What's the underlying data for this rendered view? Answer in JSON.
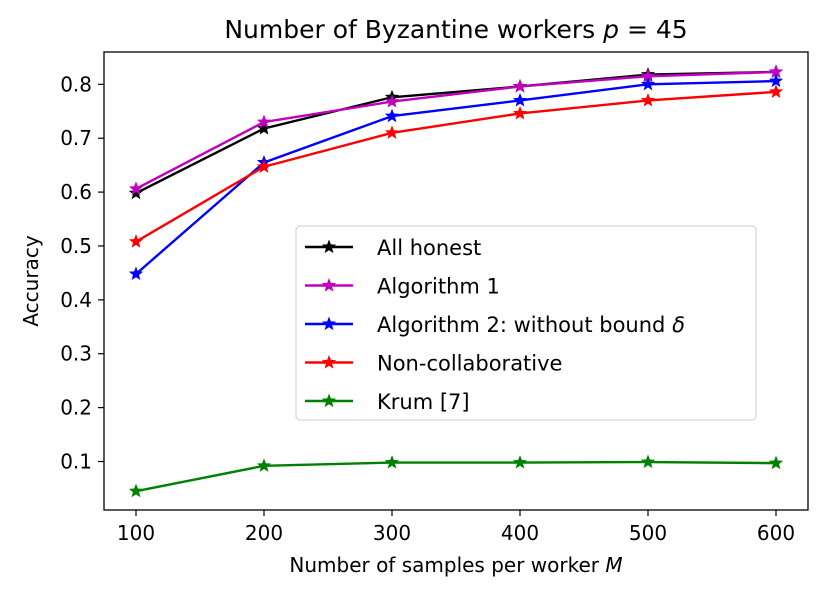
{
  "chart_data": {
    "type": "line",
    "title": "Number of Byzantine workers p = 45",
    "title_parts": {
      "text": "Number of Byzantine workers ",
      "var": "p",
      "rest": " = 45"
    },
    "xlabel": "Number of samples per worker M",
    "xlabel_parts": {
      "text": "Number of samples per worker ",
      "var": "M"
    },
    "ylabel": "Accuracy",
    "x": [
      100,
      200,
      300,
      400,
      500,
      600
    ],
    "xlim": [
      75,
      625
    ],
    "ylim": [
      0.01,
      0.86
    ],
    "xticks": [
      "100",
      "200",
      "300",
      "400",
      "500",
      "600"
    ],
    "yticks": [
      "0.1",
      "0.2",
      "0.3",
      "0.4",
      "0.5",
      "0.6",
      "0.7",
      "0.8"
    ],
    "grid": false,
    "legend_position": "center-right",
    "series": [
      {
        "name": "All honest",
        "color": "#000000",
        "values": [
          0.598,
          0.718,
          0.776,
          0.796,
          0.818,
          0.823
        ]
      },
      {
        "name": "Algorithm 1",
        "color": "#bf00bf",
        "values": [
          0.606,
          0.73,
          0.768,
          0.796,
          0.815,
          0.823
        ]
      },
      {
        "name": "Algorithm 2: without bound δ",
        "color": "#0000ff",
        "values": [
          0.448,
          0.655,
          0.741,
          0.77,
          0.8,
          0.806
        ]
      },
      {
        "name": "Non-collaborative",
        "color": "#ff0000",
        "values": [
          0.508,
          0.647,
          0.71,
          0.746,
          0.77,
          0.786
        ]
      },
      {
        "name": "Krum [7]",
        "color": "#008000",
        "values": [
          0.045,
          0.092,
          0.098,
          0.098,
          0.099,
          0.097
        ]
      }
    ]
  }
}
